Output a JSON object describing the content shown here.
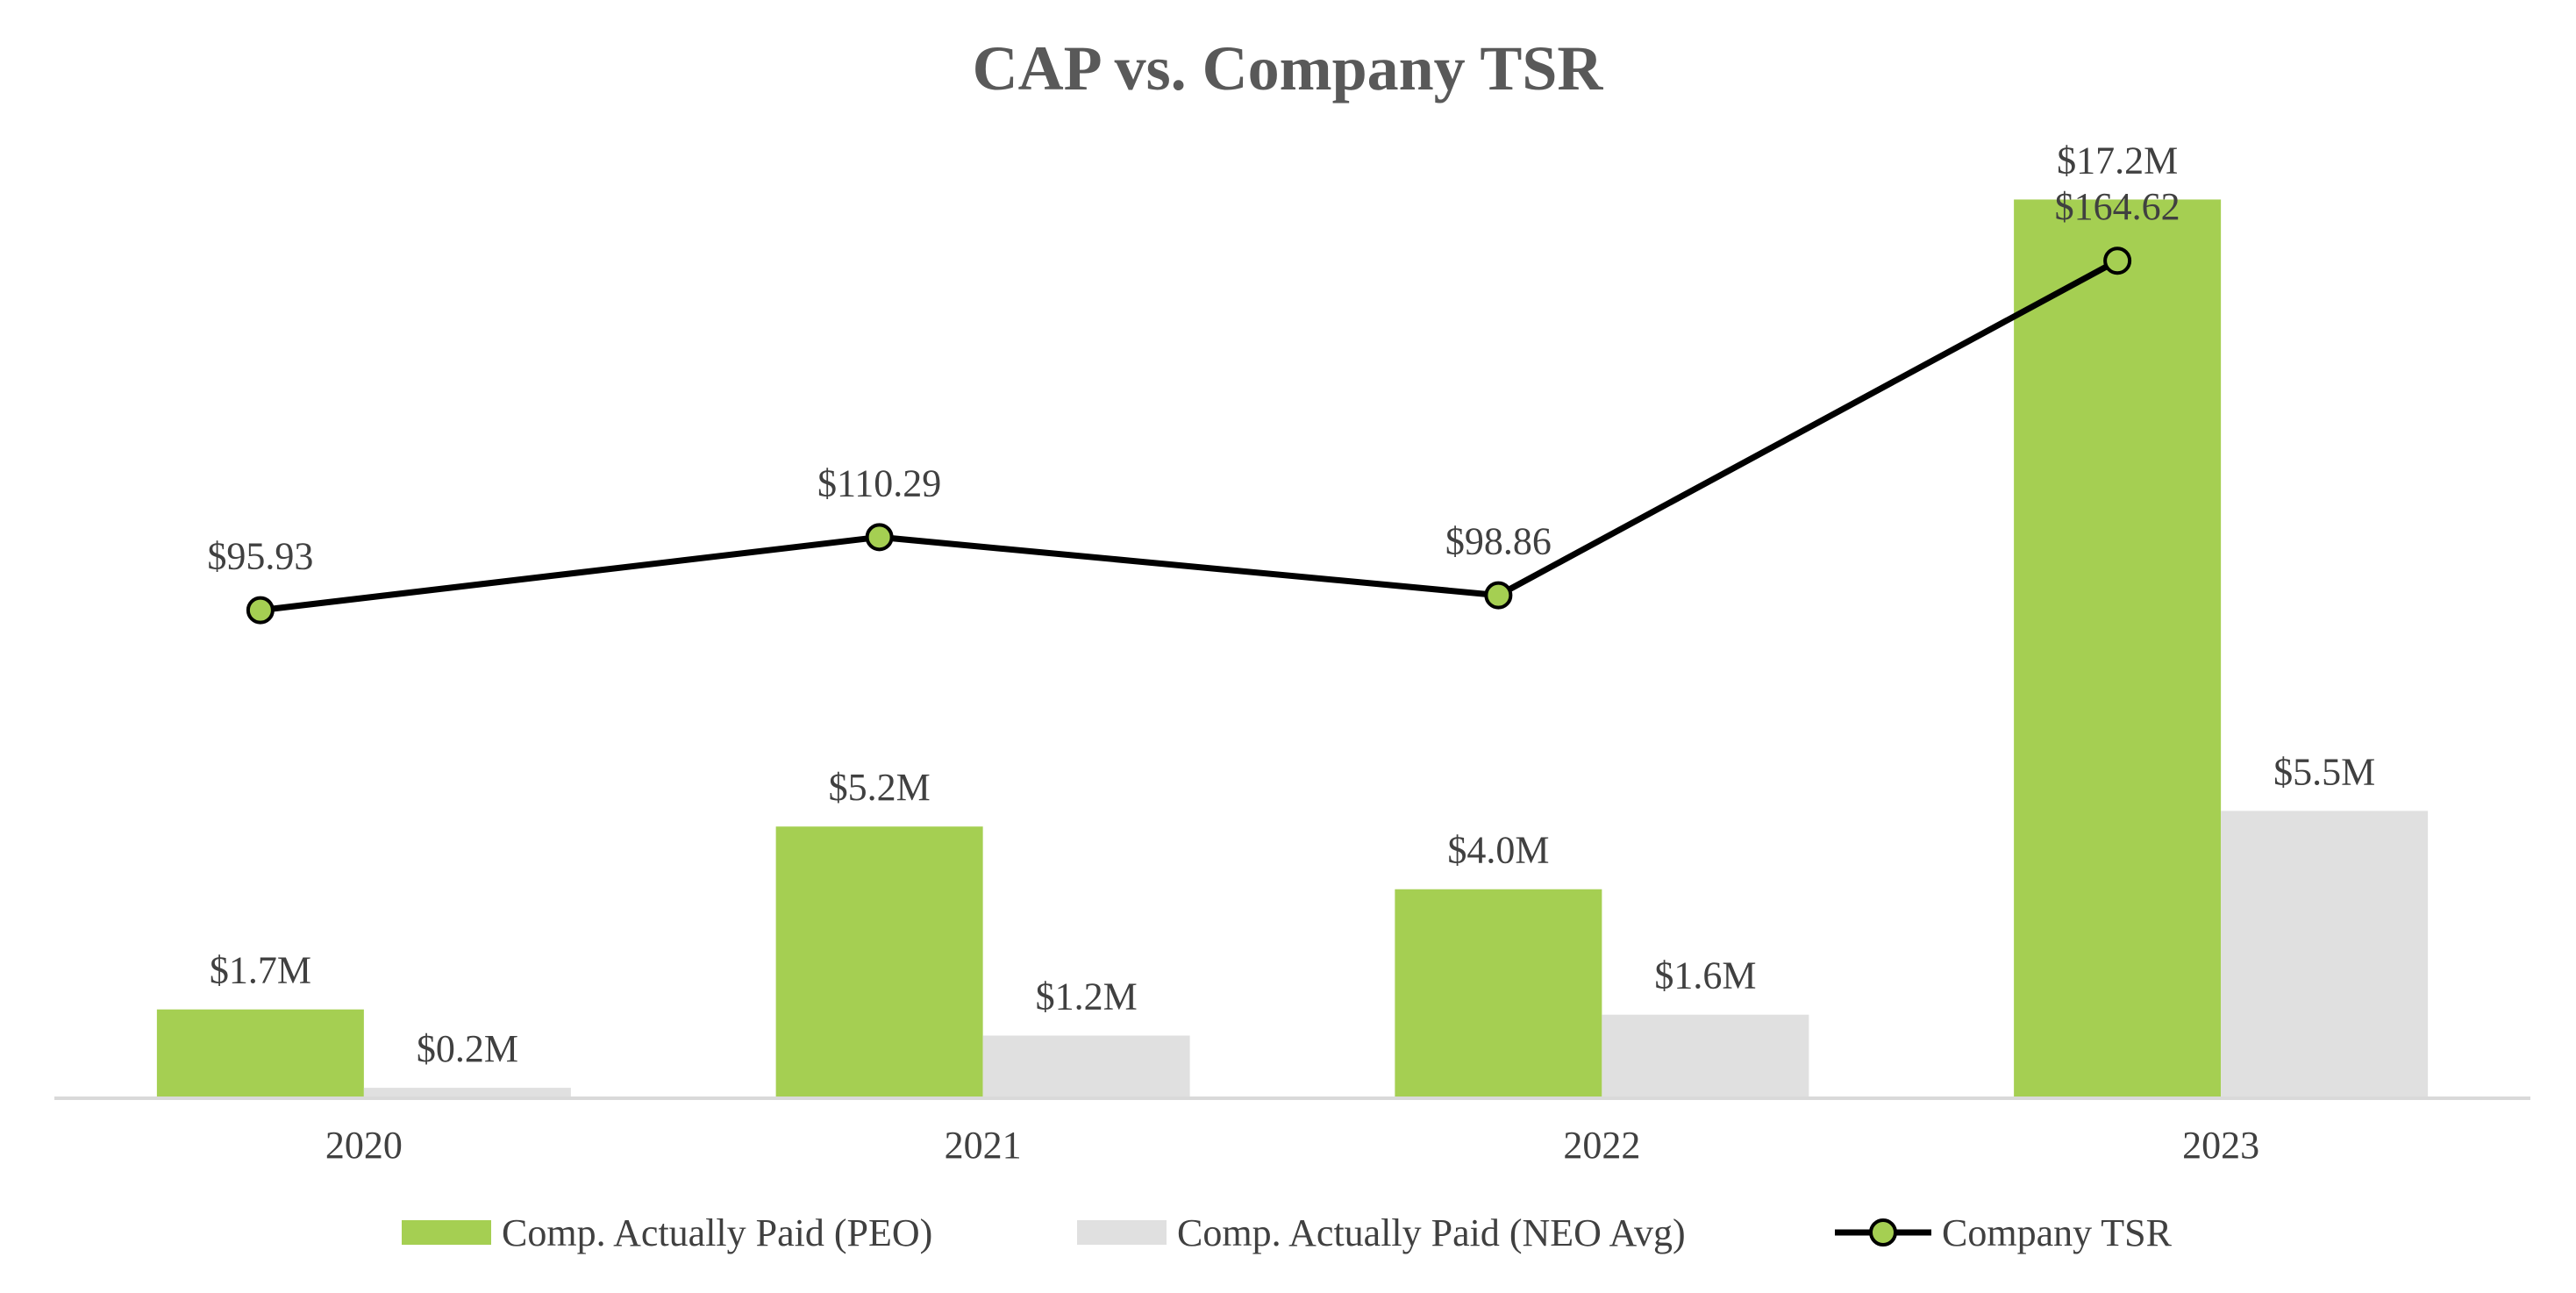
{
  "chart_data": {
    "type": "bar",
    "title": "CAP vs. Company TSR",
    "xlabel": "",
    "ylabel": "",
    "categories": [
      "2020",
      "2021",
      "2022",
      "2023"
    ],
    "grid": false,
    "legend_position": "bottom",
    "bar_ylim": [
      0,
      18.5
    ],
    "line_ylim": [
      0,
      190
    ],
    "series": [
      {
        "name": "Comp. Actually Paid (PEO)",
        "type": "bar",
        "values": [
          1.7,
          5.2,
          4.0,
          17.2
        ],
        "labels": [
          "$1.7M",
          "$5.2M",
          "$4.0M",
          "$17.2M"
        ],
        "color": "#a5cf52"
      },
      {
        "name": "Comp. Actually Paid (NEO Avg)",
        "type": "bar",
        "values": [
          0.2,
          1.2,
          1.6,
          5.5
        ],
        "labels": [
          "$0.2M",
          "$1.2M",
          "$1.6M",
          "$5.5M"
        ],
        "color": "#e0e0e0"
      },
      {
        "name": "Company TSR",
        "type": "line",
        "values": [
          95.93,
          110.29,
          98.86,
          164.62
        ],
        "labels": [
          "$95.93",
          "$110.29",
          "$98.86",
          "$164.62"
        ],
        "color": "#000000",
        "marker_color": "#a5cf52"
      }
    ]
  }
}
